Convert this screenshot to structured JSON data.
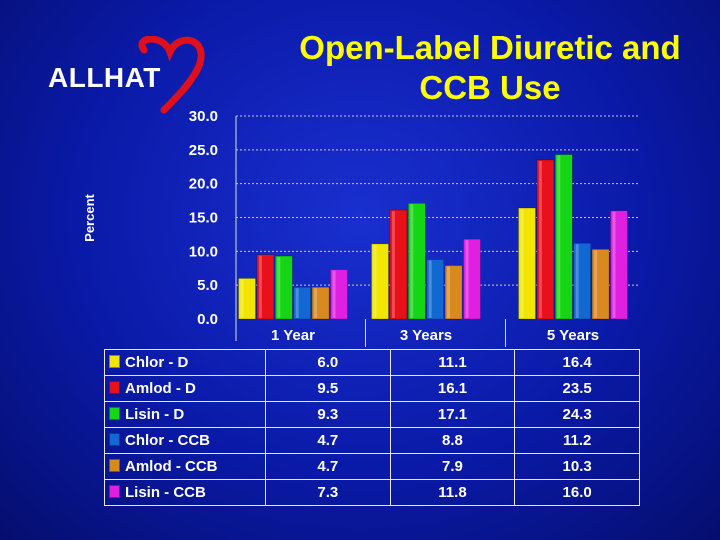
{
  "logo": {
    "text": "ALLHAT",
    "heart_color": "#e0101a",
    "icon": "heart-icon"
  },
  "title": {
    "line1": "Open-Label Diuretic and",
    "line2": "CCB Use"
  },
  "colors": {
    "title": "#ffff00",
    "grid": "#c8c8c8",
    "text": "#ffffff"
  },
  "chart_data": {
    "type": "bar",
    "title": "Open-Label Diuretic and CCB Use",
    "xlabel": "",
    "ylabel": "Percent",
    "ylim": [
      0,
      30
    ],
    "yticks": [
      "0.0",
      "5.0",
      "10.0",
      "15.0",
      "20.0",
      "25.0",
      "30.0"
    ],
    "grid": true,
    "categories": [
      "1 Year",
      "3 Years",
      "5 Years"
    ],
    "series": [
      {
        "name": "Chlor - D",
        "color": "#f2e600",
        "values": [
          6.0,
          11.1,
          16.4
        ],
        "labels": [
          "6.0",
          "11.1",
          "16.4"
        ]
      },
      {
        "name": "Amlod - D",
        "color": "#e8101a",
        "values": [
          9.5,
          16.1,
          23.5
        ],
        "labels": [
          "9.5",
          "16.1",
          "23.5"
        ]
      },
      {
        "name": "Lisin - D",
        "color": "#14d614",
        "values": [
          9.3,
          17.1,
          24.3
        ],
        "labels": [
          "9.3",
          "17.1",
          "24.3"
        ]
      },
      {
        "name": "Chlor - CCB",
        "color": "#1068d0",
        "values": [
          4.7,
          8.8,
          11.2
        ],
        "labels": [
          "4.7",
          "8.8",
          "11.2"
        ]
      },
      {
        "name": "Amlod - CCB",
        "color": "#d88a1e",
        "values": [
          4.7,
          7.9,
          10.3
        ],
        "labels": [
          "4.7",
          "7.9",
          "10.3"
        ]
      },
      {
        "name": "Lisin - CCB",
        "color": "#e020e0",
        "values": [
          7.3,
          11.8,
          16.0
        ],
        "labels": [
          "7.3",
          "11.8",
          "16.0"
        ]
      }
    ]
  }
}
